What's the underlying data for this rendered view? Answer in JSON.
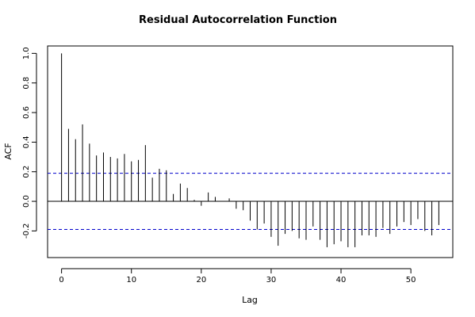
{
  "chart_data": {
    "type": "bar",
    "title": "Residual Autocorrelation Function",
    "xlabel": "Lag",
    "ylabel": "ACF",
    "xlim": [
      -2,
      56
    ],
    "ylim": [
      -0.38,
      1.05
    ],
    "x_ticks": [
      0,
      10,
      20,
      30,
      40,
      50
    ],
    "x_tick_labels": [
      "0",
      "10",
      "20",
      "30",
      "40",
      "50"
    ],
    "y_ticks": [
      -0.2,
      0.0,
      0.2,
      0.4,
      0.6,
      0.8,
      1.0
    ],
    "y_tick_labels": [
      "-0.2",
      "0.0",
      "0.2",
      "0.4",
      "0.6",
      "0.8",
      "1.0"
    ],
    "confidence_bound": 0.19,
    "confidence_line_color": "#0000cc",
    "bar_color": "#000000",
    "grid": false,
    "lags": [
      0,
      1,
      2,
      3,
      4,
      5,
      6,
      7,
      8,
      9,
      10,
      11,
      12,
      13,
      14,
      15,
      16,
      17,
      18,
      19,
      20,
      21,
      22,
      23,
      24,
      25,
      26,
      27,
      28,
      29,
      30,
      31,
      32,
      33,
      34,
      35,
      36,
      37,
      38,
      39,
      40,
      41,
      42,
      43,
      44,
      45,
      46,
      47,
      48,
      49,
      50,
      51,
      52,
      53,
      54
    ],
    "values": [
      1.0,
      0.49,
      0.42,
      0.52,
      0.39,
      0.31,
      0.33,
      0.3,
      0.29,
      0.32,
      0.27,
      0.28,
      0.38,
      0.16,
      0.22,
      0.21,
      0.05,
      0.12,
      0.09,
      0.01,
      -0.03,
      0.06,
      0.03,
      0.0,
      0.02,
      -0.05,
      -0.06,
      -0.13,
      -0.19,
      -0.15,
      -0.24,
      -0.3,
      -0.22,
      -0.2,
      -0.25,
      -0.26,
      -0.17,
      -0.26,
      -0.31,
      -0.29,
      -0.27,
      -0.31,
      -0.31,
      -0.23,
      -0.23,
      -0.24,
      -0.18,
      -0.22,
      -0.17,
      -0.14,
      -0.16,
      -0.12,
      -0.2,
      -0.23,
      -0.16
    ]
  }
}
